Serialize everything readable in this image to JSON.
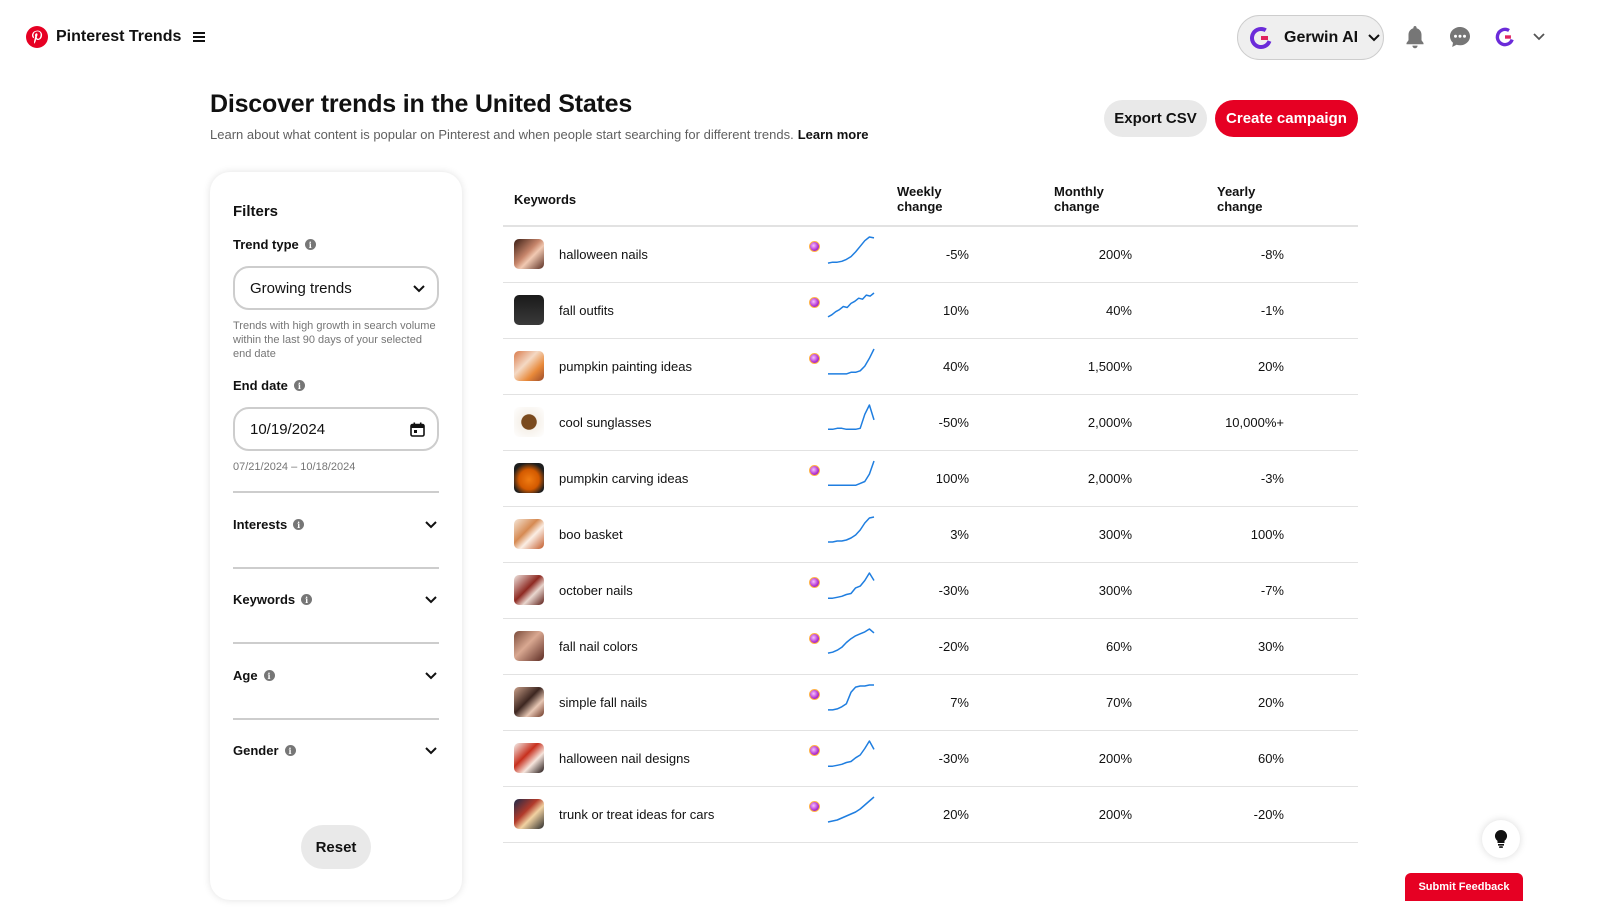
{
  "app": {
    "name": "Pinterest Trends"
  },
  "account": {
    "name": "Gerwin AI"
  },
  "header": {
    "title": "Discover trends in the United States",
    "subtitle": "Learn about what content is popular on Pinterest and when people start searching for different trends.",
    "learn_more": "Learn more",
    "export_label": "Export CSV",
    "create_label": "Create campaign"
  },
  "filters": {
    "title": "Filters",
    "trend_type_label": "Trend type",
    "trend_type_value": "Growing trends",
    "trend_type_helper": "Trends with high growth in search volume within the last 90 days of your selected end date",
    "end_date_label": "End date",
    "end_date_value": "10/19/2024",
    "end_date_range": "07/21/2024 – 10/18/2024",
    "sections": [
      "Interests",
      "Keywords",
      "Age",
      "Gender"
    ],
    "reset_label": "Reset"
  },
  "table": {
    "col_keywords": "Keywords",
    "col_weekly": [
      "Weekly",
      "change"
    ],
    "col_monthly": [
      "Monthly",
      "change"
    ],
    "col_yearly": [
      "Yearly",
      "change"
    ],
    "rows": [
      {
        "keyword": "halloween nails",
        "weekly": "-5%",
        "monthly": "200%",
        "yearly": "-8%",
        "ai": true,
        "trend": [
          2,
          3,
          3,
          4,
          6,
          9,
          14,
          20,
          26,
          30,
          29
        ]
      },
      {
        "keyword": "fall outfits",
        "weekly": "10%",
        "monthly": "40%",
        "yearly": "-1%",
        "ai": true,
        "trend": [
          4,
          6,
          9,
          11,
          14,
          13,
          17,
          19,
          22,
          21,
          25,
          24,
          27
        ]
      },
      {
        "keyword": "pumpkin painting ideas",
        "weekly": "40%",
        "monthly": "1,500%",
        "yearly": "20%",
        "ai": true,
        "trend": [
          2,
          2,
          2,
          2,
          2,
          3,
          3,
          4,
          7,
          12,
          18
        ]
      },
      {
        "keyword": "cool sunglasses",
        "weekly": "-50%",
        "monthly": "2,000%",
        "yearly": "10,000%+",
        "ai": false,
        "trend": [
          4,
          4,
          5,
          5,
          4,
          4,
          4,
          5,
          20,
          30,
          14
        ]
      },
      {
        "keyword": "pumpkin carving ideas",
        "weekly": "100%",
        "monthly": "2,000%",
        "yearly": "-3%",
        "ai": true,
        "trend": [
          2,
          2,
          2,
          2,
          2,
          2,
          2,
          3,
          4,
          8,
          15
        ]
      },
      {
        "keyword": "boo basket",
        "weekly": "3%",
        "monthly": "300%",
        "yearly": "100%",
        "ai": false,
        "trend": [
          3,
          3,
          4,
          4,
          5,
          7,
          10,
          15,
          22,
          27,
          28
        ]
      },
      {
        "keyword": "october nails",
        "weekly": "-30%",
        "monthly": "300%",
        "yearly": "-7%",
        "ai": true,
        "trend": [
          3,
          3,
          4,
          5,
          7,
          8,
          14,
          16,
          22,
          30,
          22
        ]
      },
      {
        "keyword": "fall nail colors",
        "weekly": "-20%",
        "monthly": "60%",
        "yearly": "30%",
        "ai": true,
        "trend": [
          4,
          5,
          7,
          10,
          15,
          19,
          22,
          24,
          26,
          29,
          25
        ]
      },
      {
        "keyword": "simple fall nails",
        "weekly": "7%",
        "monthly": "70%",
        "yearly": "20%",
        "ai": true,
        "trend": [
          3,
          3,
          4,
          6,
          9,
          20,
          25,
          26,
          26,
          27,
          27
        ]
      },
      {
        "keyword": "halloween nail designs",
        "weekly": "-30%",
        "monthly": "200%",
        "yearly": "60%",
        "ai": true,
        "trend": [
          3,
          3,
          4,
          5,
          7,
          8,
          12,
          15,
          22,
          30,
          21
        ]
      },
      {
        "keyword": "trunk or treat ideas for cars",
        "weekly": "20%",
        "monthly": "200%",
        "yearly": "-20%",
        "ai": true,
        "trend": [
          3,
          4,
          5,
          7,
          9,
          11,
          13,
          16,
          20,
          24,
          28
        ]
      }
    ]
  },
  "colors": {
    "brand": "#e60023",
    "sparkline": "#1f7ee0"
  },
  "feedback_label": "Submit Feedback"
}
